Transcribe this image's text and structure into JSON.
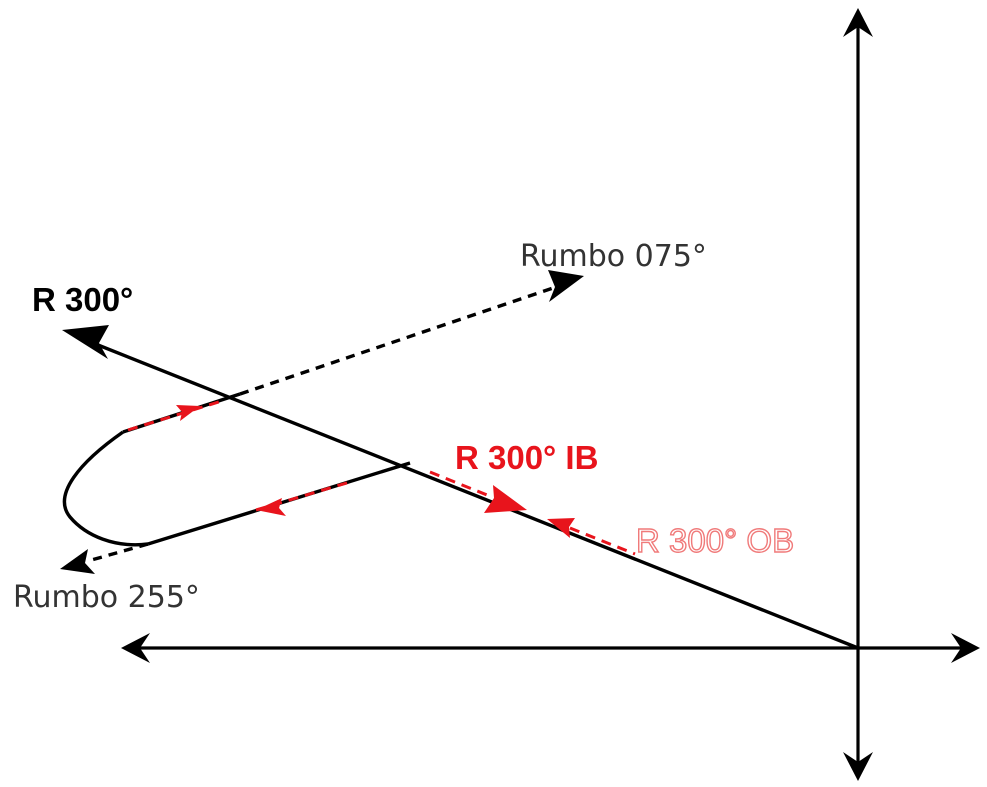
{
  "labels": {
    "radial": "R 300°",
    "inbound": "R 300° IB",
    "outbound": "R 300° OB",
    "course_out": "Rumbo 075°",
    "course_in": "Rumbo 255°"
  },
  "colors": {
    "line": "#000000",
    "accent": "#e8141c",
    "outbound_label": "#f07a7a"
  }
}
